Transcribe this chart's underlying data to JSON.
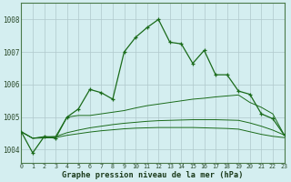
{
  "x": [
    0,
    1,
    2,
    3,
    4,
    5,
    6,
    7,
    8,
    9,
    10,
    11,
    12,
    13,
    14,
    15,
    16,
    17,
    18,
    19,
    20,
    21,
    22,
    23
  ],
  "main_line": [
    1004.55,
    1003.9,
    1004.4,
    1004.35,
    1005.0,
    1005.25,
    1005.85,
    1005.75,
    1005.55,
    1007.0,
    1007.45,
    1007.75,
    1008.0,
    1007.3,
    1007.25,
    1006.65,
    1007.05,
    1006.3,
    1006.3,
    1005.8,
    1005.7,
    1005.1,
    1004.95,
    1004.45
  ],
  "band_top": [
    1004.55,
    1004.35,
    1004.4,
    1004.4,
    1005.0,
    1005.05,
    1005.05,
    1005.1,
    1005.15,
    1005.2,
    1005.28,
    1005.35,
    1005.4,
    1005.45,
    1005.5,
    1005.55,
    1005.58,
    1005.62,
    1005.65,
    1005.68,
    1005.45,
    1005.3,
    1005.1,
    1004.45
  ],
  "band_mid": [
    1004.55,
    1004.35,
    1004.38,
    1004.4,
    1004.52,
    1004.6,
    1004.67,
    1004.72,
    1004.77,
    1004.81,
    1004.84,
    1004.87,
    1004.89,
    1004.9,
    1004.91,
    1004.92,
    1004.92,
    1004.92,
    1004.91,
    1004.9,
    1004.82,
    1004.72,
    1004.6,
    1004.45
  ],
  "band_bot": [
    1004.55,
    1004.35,
    1004.36,
    1004.37,
    1004.44,
    1004.49,
    1004.54,
    1004.58,
    1004.61,
    1004.64,
    1004.66,
    1004.67,
    1004.68,
    1004.68,
    1004.68,
    1004.68,
    1004.67,
    1004.66,
    1004.65,
    1004.63,
    1004.55,
    1004.47,
    1004.41,
    1004.37
  ],
  "line_color": "#1a6b1a",
  "bg_color": "#d4eef0",
  "grid_color": "#b0c8cc",
  "ylabel_values": [
    1004,
    1005,
    1006,
    1007,
    1008
  ],
  "xlabel_label": "Graphe pression niveau de la mer (hPa)",
  "xlim": [
    0,
    23
  ],
  "ylim": [
    1003.6,
    1008.5
  ]
}
